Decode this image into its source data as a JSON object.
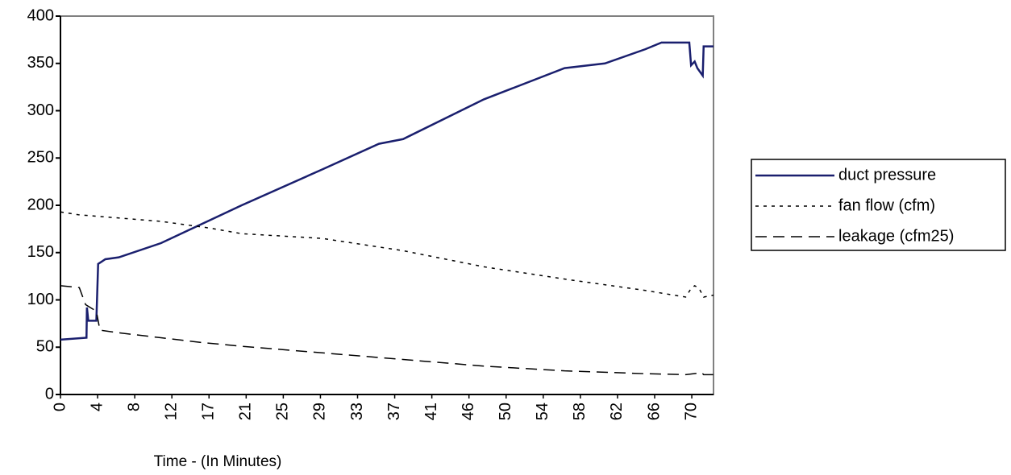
{
  "chart_data": {
    "type": "line",
    "x_label": "Time - (In Minutes)",
    "xlim": [
      0,
      72.8
    ],
    "xticks": [
      0,
      {
        "value": 4.14,
        "label": "4"
      },
      {
        "value": 8.28,
        "label": "8"
      },
      {
        "value": 12.42,
        "label": "12"
      },
      {
        "value": 16.56,
        "label": "17"
      },
      {
        "value": 20.7,
        "label": "21"
      },
      {
        "value": 24.84,
        "label": "25"
      },
      {
        "value": 28.98,
        "label": "29"
      },
      {
        "value": 33.12,
        "label": "33"
      },
      {
        "value": 37.26,
        "label": "37"
      },
      {
        "value": 41.4,
        "label": "41"
      },
      {
        "value": 45.54,
        "label": "46"
      },
      {
        "value": 49.68,
        "label": "50"
      },
      {
        "value": 53.82,
        "label": "54"
      },
      {
        "value": 57.96,
        "label": "58"
      },
      {
        "value": 62.1,
        "label": "62"
      },
      {
        "value": 66.24,
        "label": "66"
      },
      {
        "value": 70.38,
        "label": "70"
      }
    ],
    "ylim": [
      0,
      400
    ],
    "yticks": [
      0,
      50,
      100,
      150,
      200,
      250,
      300,
      350,
      400
    ],
    "legend": "right",
    "series": [
      {
        "name": "duct pressure",
        "color": "#1a1f6e",
        "style": "solid",
        "x": [
          0,
          2.9,
          2.95,
          3.1,
          4.0,
          4.2,
          5.0,
          6.5,
          11.2,
          20.2,
          29.2,
          35.5,
          38.2,
          47.2,
          56.2,
          60.7,
          65.2,
          67.0,
          70.1,
          70.3,
          70.7,
          71.0,
          71.6,
          71.7,
          72.8
        ],
        "values": [
          58,
          60,
          92,
          78,
          78,
          138,
          143,
          145,
          160,
          200,
          238,
          265,
          270,
          312,
          345,
          350,
          365,
          372,
          372,
          348,
          352,
          345,
          337,
          368,
          368
        ]
      },
      {
        "name": "fan flow (cfm)",
        "color": "#000000",
        "style": "dotted",
        "x": [
          0,
          2.0,
          11.2,
          16.6,
          20.2,
          29.2,
          38.2,
          47.2,
          56.2,
          65.2,
          69.7,
          70.3,
          70.7,
          71.2,
          71.7,
          72.8
        ],
        "values": [
          193,
          190,
          183,
          176,
          170,
          165,
          152,
          135,
          122,
          110,
          103,
          112,
          115,
          112,
          103,
          105
        ]
      },
      {
        "name": "leakage (cfm25)",
        "color": "#000000",
        "style": "dashed",
        "x": [
          0,
          2.1,
          2.8,
          4.0,
          4.4,
          6.7,
          11.2,
          15.7,
          20.2,
          29.2,
          38.2,
          47.2,
          56.2,
          65.2,
          69.7,
          71.5,
          71.7,
          72.8
        ],
        "values": [
          115,
          113,
          95,
          88,
          68,
          65,
          60,
          55,
          51,
          44,
          37,
          30,
          25,
          22,
          21,
          23,
          21,
          21
        ]
      }
    ]
  }
}
